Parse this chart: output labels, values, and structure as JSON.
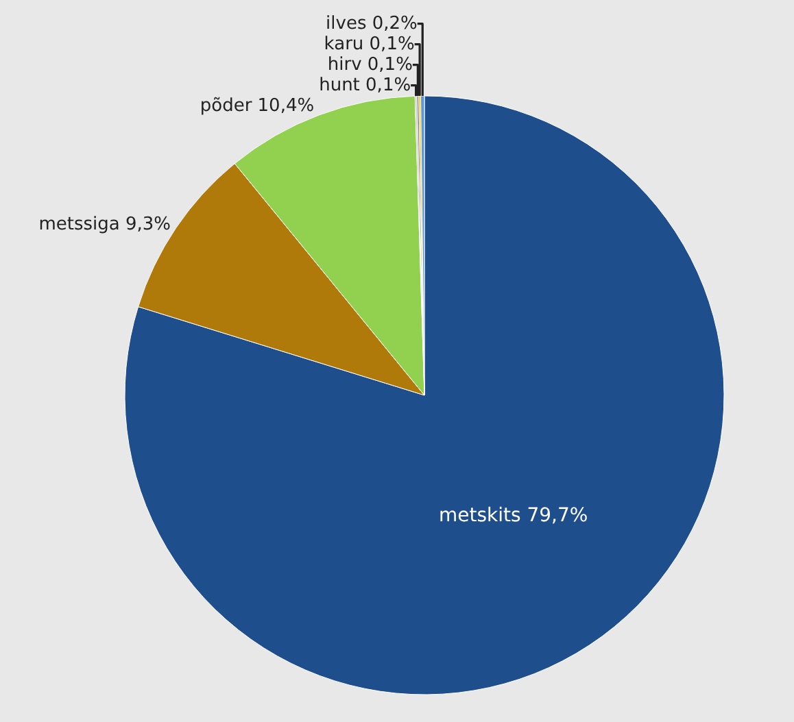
{
  "chart_data": {
    "type": "pie",
    "categories": [
      "metskits",
      "metssiga",
      "põder",
      "hunt",
      "hirv",
      "karu",
      "ilves"
    ],
    "values": [
      79.7,
      9.3,
      10.4,
      0.1,
      0.1,
      0.1,
      0.2
    ],
    "value_labels": [
      "79,7%",
      "9,3%",
      "10,4%",
      "0,1%",
      "0,1%",
      "0,1%",
      "0,2%"
    ],
    "colors": [
      "#1f4e8c",
      "#b07a0a",
      "#92d050",
      "#c9c9c9",
      "#7f7f7f",
      "#ffc000",
      "#5b9bd5"
    ],
    "legend": false
  }
}
